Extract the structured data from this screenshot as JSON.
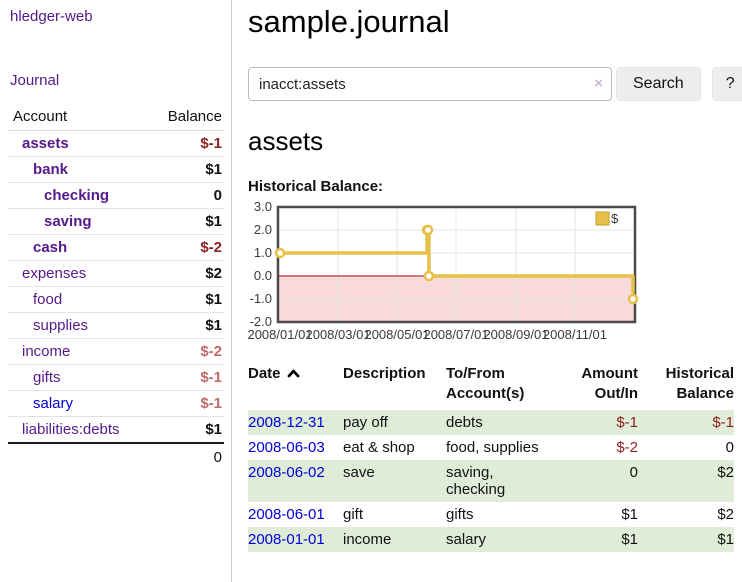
{
  "app": {
    "title": "hledger-web"
  },
  "colors": {
    "link_purple": "#551a8b",
    "link_blue": "#0000dd",
    "negative_dark": "#8e1f1f",
    "negative_soft": "#c06a6a",
    "row_highlight_green": "#deecd8",
    "chart_line_gold": "#e6c049",
    "chart_negative_region": "#f9dada",
    "chart_zero_line": "#aa0000"
  },
  "icons": {
    "sort_ascending": "chevron-up",
    "clear_search": "×"
  },
  "sidebar": {
    "nav": {
      "journal_label": "Journal"
    },
    "table_headers": {
      "account": "Account",
      "balance": "Balance"
    },
    "accounts": [
      {
        "account": "assets",
        "balance": "$-1",
        "level": 1,
        "bold": true,
        "link_color": "purple"
      },
      {
        "account": "bank",
        "balance": "$1",
        "level": 2,
        "bold": true,
        "link_color": "purple"
      },
      {
        "account": "checking",
        "balance": "0",
        "level": 3,
        "bold": true,
        "link_color": "purple"
      },
      {
        "account": "saving",
        "balance": "$1",
        "level": 3,
        "bold": true,
        "link_color": "purple"
      },
      {
        "account": "cash",
        "balance": "$-2",
        "level": 2,
        "bold": true,
        "link_color": "purple"
      },
      {
        "account": "expenses",
        "balance": "$2",
        "level": 1,
        "bold": false,
        "link_color": "purple"
      },
      {
        "account": "food",
        "balance": "$1",
        "level": 2,
        "bold": false,
        "link_color": "purple"
      },
      {
        "account": "supplies",
        "balance": "$1",
        "level": 2,
        "bold": false,
        "link_color": "purple"
      },
      {
        "account": "income",
        "balance": "$-2",
        "level": 1,
        "bold": false,
        "link_color": "purple"
      },
      {
        "account": "gifts",
        "balance": "$-1",
        "level": 2,
        "bold": false,
        "link_color": "purple"
      },
      {
        "account": "salary",
        "balance": "$-1",
        "level": 2,
        "bold": false,
        "link_color": "blue"
      },
      {
        "account": "liabilities:debts",
        "balance": "$1",
        "level": 1,
        "bold": false,
        "link_color": "purple"
      }
    ],
    "total": "0"
  },
  "main": {
    "title": "sample.journal",
    "search": {
      "value": "inacct:assets",
      "clear_icon": "×",
      "search_button": "Search",
      "help_button": "?"
    },
    "account_heading": "assets",
    "chart_heading": "Historical Balance:"
  },
  "chart_data": {
    "type": "line",
    "title": "Historical Balance:",
    "step": true,
    "series": [
      {
        "name": "$",
        "points": [
          [
            "2008-01-01",
            1
          ],
          [
            "2008-06-01",
            2
          ],
          [
            "2008-06-02",
            2
          ],
          [
            "2008-06-03",
            0
          ],
          [
            "2008-12-31",
            -1
          ]
        ]
      }
    ],
    "x_ticks": [
      "2008/01/01",
      "2008/03/01",
      "2008/05/01",
      "2008/07/01",
      "2008/09/01",
      "2008/11/01"
    ],
    "y_ticks": [
      3.0,
      2.0,
      1.0,
      0.0,
      -1.0,
      -2.0
    ],
    "ylim": [
      -2,
      3
    ],
    "grid": true,
    "legend": {
      "label": "$",
      "position": "top-right"
    },
    "negative_region_shaded": true
  },
  "register": {
    "headers": [
      {
        "line1": "Date",
        "line2": ""
      },
      {
        "line1": "Description",
        "line2": ""
      },
      {
        "line1": "To/From",
        "line2": "Account(s)"
      },
      {
        "line1": "Amount",
        "line2": "Out/In"
      },
      {
        "line1": "Historical",
        "line2": "Balance"
      }
    ],
    "rows": [
      {
        "date": "2008-12-31",
        "description": "pay off",
        "accounts": "debts",
        "amount": "$-1",
        "balance": "$-1"
      },
      {
        "date": "2008-06-03",
        "description": "eat & shop",
        "accounts": "food, supplies",
        "amount": "$-2",
        "balance": "0"
      },
      {
        "date": "2008-06-02",
        "description": "save",
        "accounts": "saving, checking",
        "amount": "0",
        "balance": "$2"
      },
      {
        "date": "2008-06-01",
        "description": "gift",
        "accounts": "gifts",
        "amount": "$1",
        "balance": "$2"
      },
      {
        "date": "2008-01-01",
        "description": "income",
        "accounts": "salary",
        "amount": "$1",
        "balance": "$1"
      }
    ]
  }
}
